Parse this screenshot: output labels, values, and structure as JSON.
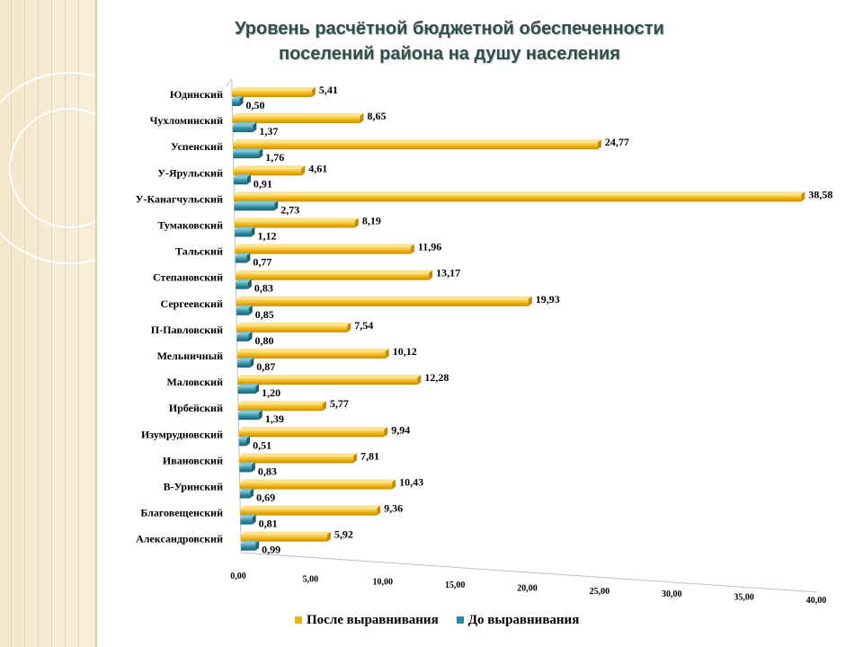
{
  "title_line1": "Уровень расчётной бюджетной обеспеченности",
  "title_line2": "поселений района на душу населения",
  "colors": {
    "after": "#f2b50f",
    "after_dark": "#c98c00",
    "before": "#2e8ca3",
    "before_dark": "#1c6374"
  },
  "chart_data": {
    "type": "bar",
    "orientation": "horizontal",
    "title": "Уровень расчётной бюджетной обеспеченности поселений района на душу населения",
    "categories": [
      "Юдинский",
      "Чухломинский",
      "Успенский",
      "У-Ярульский",
      "У-Канагчульский",
      "Тумаковский",
      "Тальский",
      "Степановский",
      "Сергеевский",
      "П-Павловский",
      "Мельничный",
      "Маловский",
      "Ирбейский",
      "Изумрудновский",
      "Ивановский",
      "В-Уринский",
      "Благовещенский",
      "Александровский"
    ],
    "series": [
      {
        "name": "После выравнивания",
        "values": [
          5.41,
          8.65,
          24.77,
          4.61,
          38.58,
          8.19,
          11.96,
          13.17,
          19.93,
          7.54,
          10.12,
          12.28,
          5.77,
          9.94,
          7.81,
          10.43,
          9.36,
          5.92
        ],
        "labels": [
          "5,41",
          "8,65",
          "24,77",
          "4,61",
          "38,58",
          "8,19",
          "11,96",
          "13,17",
          "19,93",
          "7,54",
          "10,12",
          "12,28",
          "5,77",
          "9,94",
          "7,81",
          "10,43",
          "9,36",
          "5,92"
        ]
      },
      {
        "name": "До выравнивания",
        "values": [
          0.5,
          1.37,
          1.76,
          0.91,
          2.73,
          1.12,
          0.77,
          0.83,
          0.85,
          0.8,
          0.87,
          1.2,
          1.39,
          0.51,
          0.83,
          0.69,
          0.81,
          0.99
        ],
        "labels": [
          "0,50",
          "1,37",
          "1,76",
          "0,91",
          "2,73",
          "1,12",
          "0,77",
          "0,83",
          "0,85",
          "0,80",
          "0,87",
          "1,20",
          "1,39",
          "0,51",
          "0,83",
          "0,69",
          "0,81",
          "0,99"
        ]
      }
    ],
    "xlim": [
      0,
      40
    ],
    "xticks": [
      "0,00",
      "5,00",
      "10,00",
      "15,00",
      "20,00",
      "25,00",
      "30,00",
      "35,00",
      "40,00"
    ],
    "xlabel": "",
    "ylabel": "",
    "legend_position": "bottom"
  }
}
